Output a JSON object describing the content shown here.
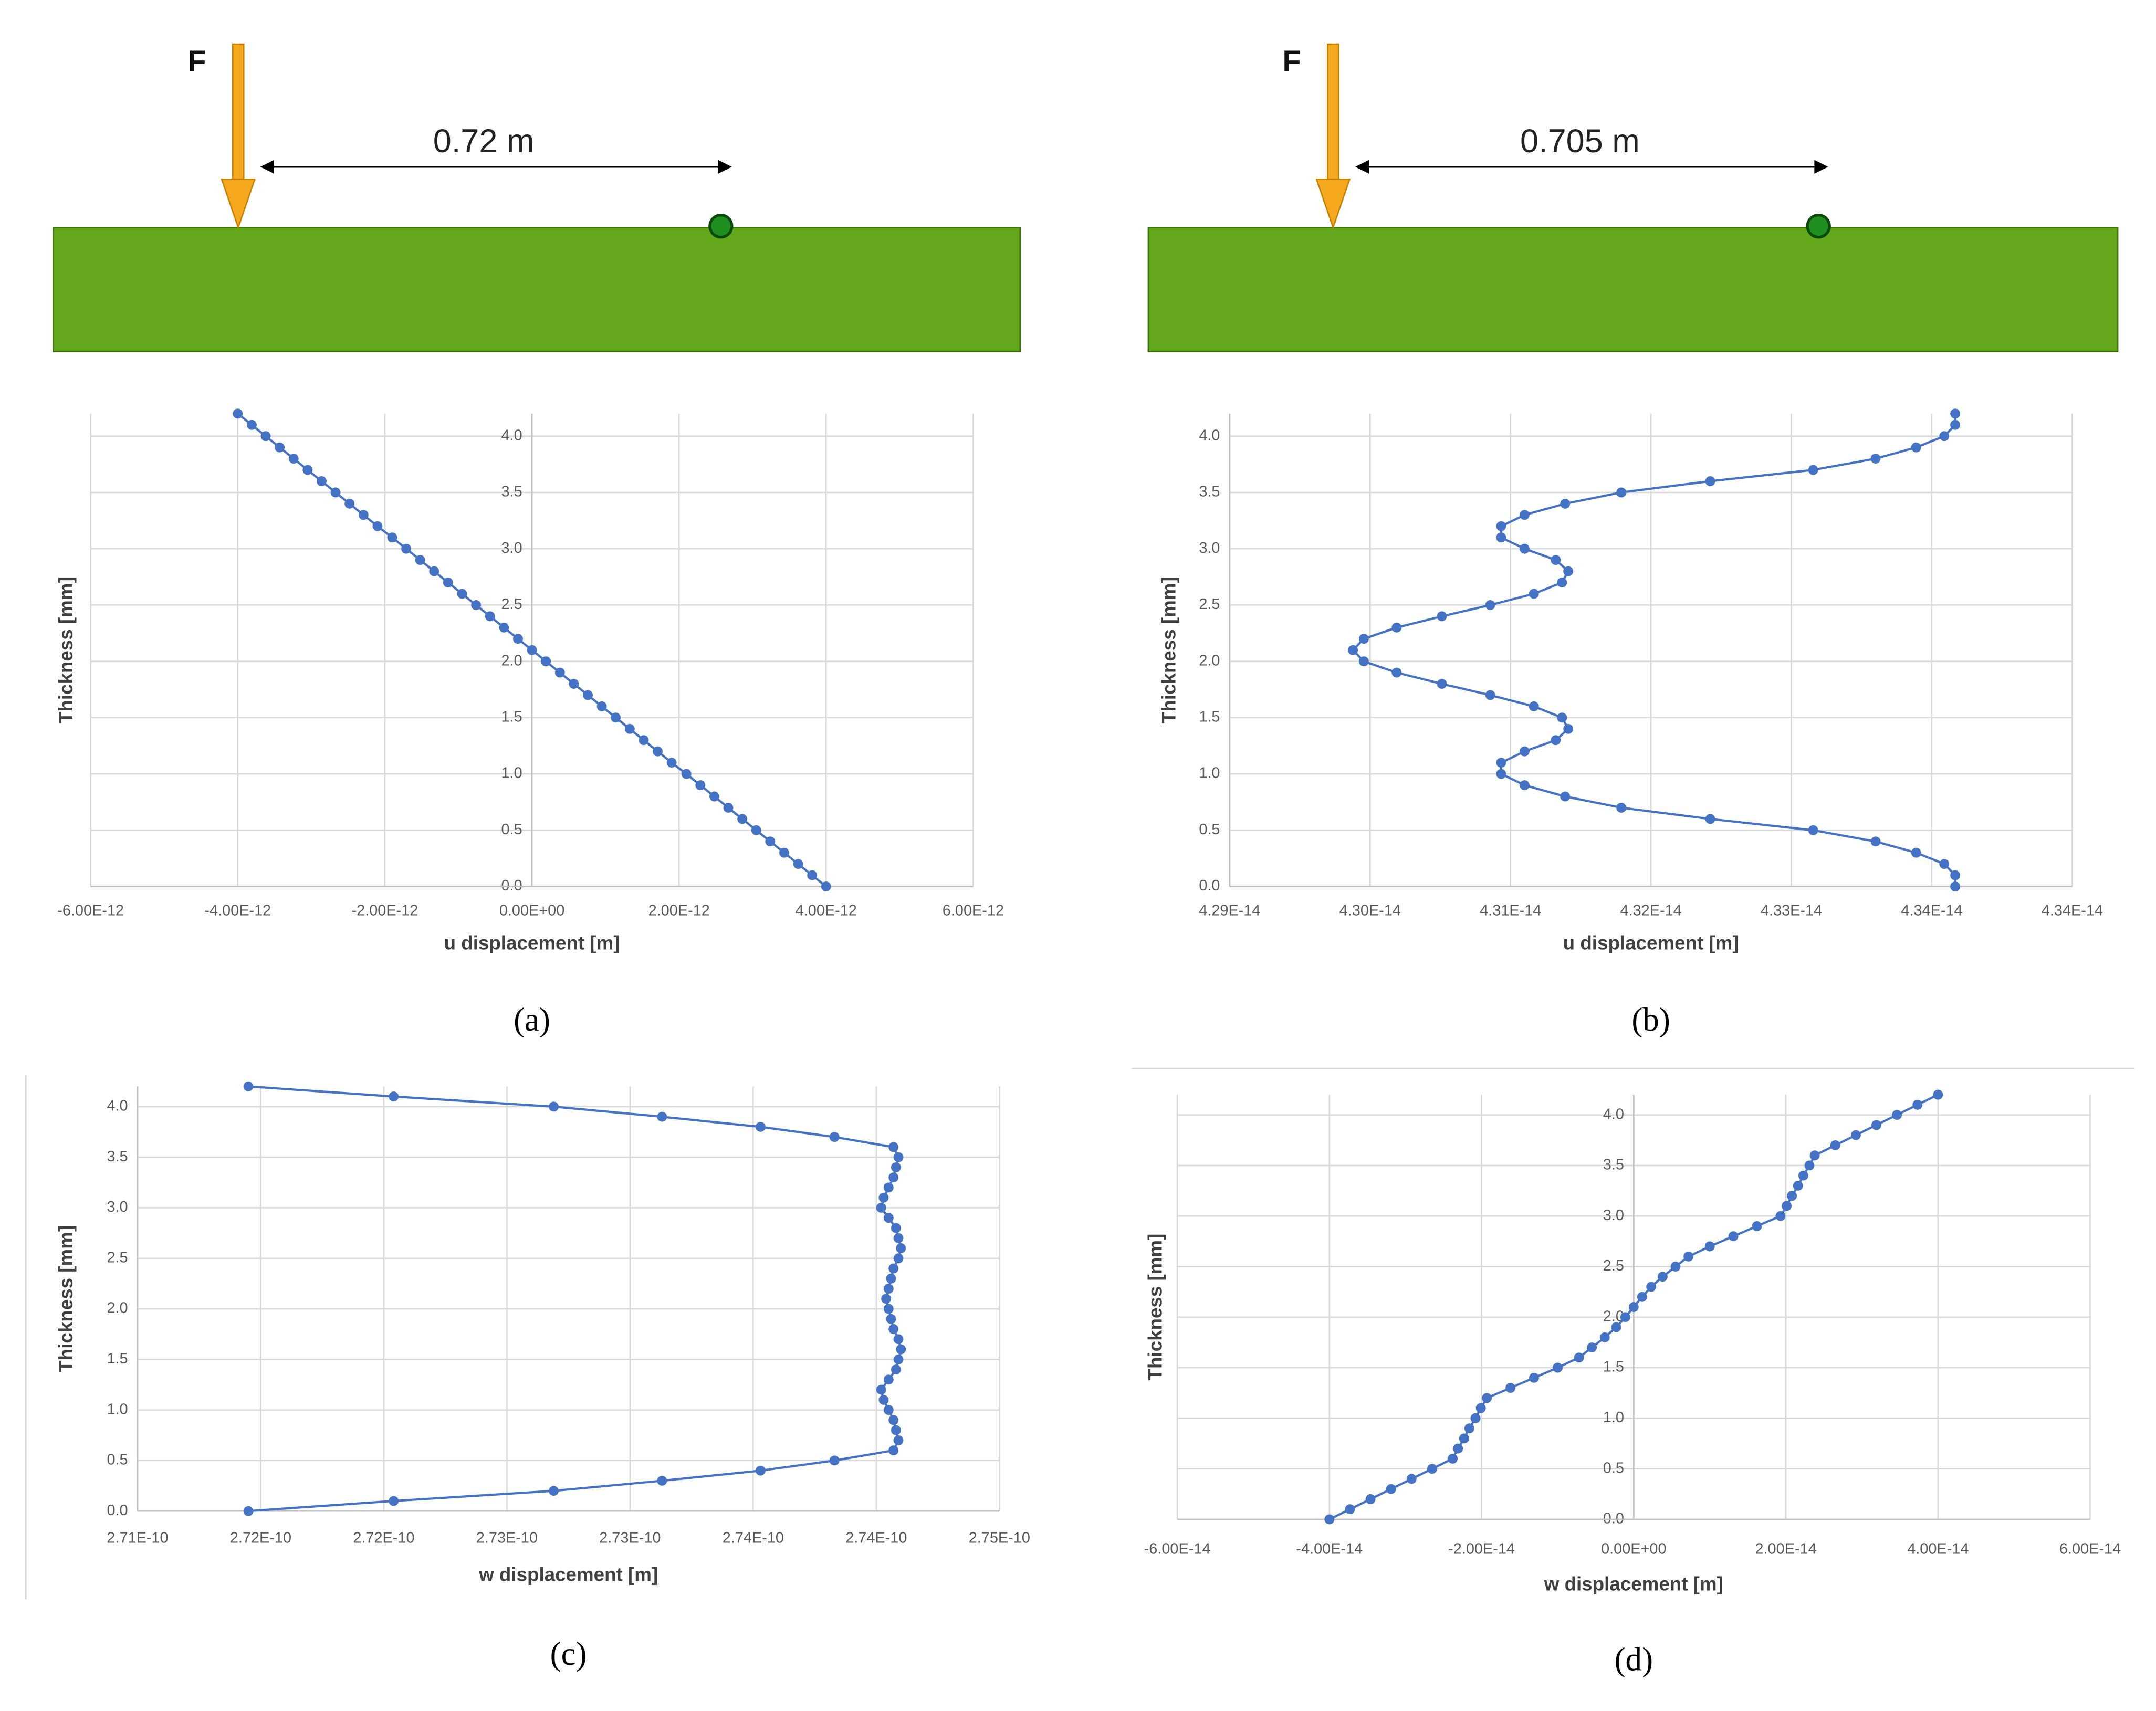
{
  "chart_data": [
    {
      "type": "line",
      "label": "(a)",
      "x_label": "u displacement [m]",
      "y_label": "Thickness [mm]",
      "grid": true,
      "xlim": [
        -6e-12,
        6e-12
      ],
      "xticks": [
        {
          "value": -6e-12,
          "label": "-6.00E-12"
        },
        {
          "value": -4e-12,
          "label": "-4.00E-12"
        },
        {
          "value": -2e-12,
          "label": "-2.00E-12"
        },
        {
          "value": 0,
          "label": "0.00E+00"
        },
        {
          "value": 2e-12,
          "label": "2.00E-12"
        },
        {
          "value": 4e-12,
          "label": "4.00E-12"
        },
        {
          "value": 6e-12,
          "label": "6.00E-12"
        }
      ],
      "ylim": [
        0,
        4.2
      ],
      "yticks": [
        {
          "value": 0,
          "label": "0.0"
        },
        {
          "value": 0.5,
          "label": "0.5"
        },
        {
          "value": 1,
          "label": "1.0"
        },
        {
          "value": 1.5,
          "label": "1.5"
        },
        {
          "value": 2,
          "label": "2.0"
        },
        {
          "value": 2.5,
          "label": "2.5"
        },
        {
          "value": 3,
          "label": "3.0"
        },
        {
          "value": 3.5,
          "label": "3.5"
        },
        {
          "value": 4,
          "label": "4.0"
        }
      ],
      "x": [
        -4e-12,
        -3.81e-12,
        -3.62e-12,
        -3.43e-12,
        -3.24e-12,
        -3.05e-12,
        -2.86e-12,
        -2.67e-12,
        -2.48e-12,
        -2.29e-12,
        -2.1e-12,
        -1.9e-12,
        -1.71e-12,
        -1.52e-12,
        -1.33e-12,
        -1.14e-12,
        -9.5e-13,
        -7.6e-13,
        -5.7e-13,
        -3.8e-13,
        -1.9e-13,
        0,
        1.9e-13,
        3.8e-13,
        5.7e-13,
        7.6e-13,
        9.5e-13,
        1.14e-12,
        1.33e-12,
        1.52e-12,
        1.71e-12,
        1.9e-12,
        2.1e-12,
        2.29e-12,
        2.48e-12,
        2.67e-12,
        2.86e-12,
        3.05e-12,
        3.24e-12,
        3.43e-12,
        3.62e-12,
        3.81e-12,
        4e-12
      ],
      "series": [
        {
          "color": "#4472c4",
          "values": [
            4.2,
            4.1,
            4.0,
            3.9,
            3.8,
            3.7,
            3.6,
            3.5,
            3.4,
            3.3,
            3.2,
            3.1,
            3.0,
            2.9,
            2.8,
            2.7,
            2.6,
            2.5,
            2.4,
            2.3,
            2.2,
            2.1,
            2.0,
            1.9,
            1.8,
            1.7,
            1.6,
            1.5,
            1.4,
            1.3,
            1.2,
            1.1,
            1.0,
            0.9,
            0.8,
            0.7,
            0.6,
            0.5,
            0.4,
            0.3,
            0.2,
            0.1,
            0
          ]
        }
      ]
    },
    {
      "type": "line",
      "label": "(b)",
      "x_label": "u displacement [m]",
      "y_label": "Thickness [mm]",
      "grid": true,
      "xlim": [
        4.2888e-14,
        4.3428e-14
      ],
      "xticks": [
        {
          "value": 4.2888e-14,
          "label": "4.29E-14"
        },
        {
          "value": 4.2978e-14,
          "label": "4.30E-14"
        },
        {
          "value": 4.3068e-14,
          "label": "4.31E-14"
        },
        {
          "value": 4.3158e-14,
          "label": "4.32E-14"
        },
        {
          "value": 4.3248e-14,
          "label": "4.33E-14"
        },
        {
          "value": 4.3338e-14,
          "label": "4.34E-14"
        },
        {
          "value": 4.3428e-14,
          "label": "4.34E-14"
        }
      ],
      "ylim": [
        0,
        4.2
      ],
      "yticks": [
        {
          "value": 0,
          "label": "0.0"
        },
        {
          "value": 0.5,
          "label": "0.5"
        },
        {
          "value": 1,
          "label": "1.0"
        },
        {
          "value": 1.5,
          "label": "1.5"
        },
        {
          "value": 2,
          "label": "2.0"
        },
        {
          "value": 2.5,
          "label": "2.5"
        },
        {
          "value": 3,
          "label": "3.0"
        },
        {
          "value": 3.5,
          "label": "3.5"
        },
        {
          "value": 4,
          "label": "4.0"
        }
      ],
      "x": [
        4.3353e-14,
        4.3353e-14,
        4.3346e-14,
        4.3328e-14,
        4.3302e-14,
        4.3262e-14,
        4.3196e-14,
        4.3139e-14,
        4.3103e-14,
        4.3077e-14,
        4.3062e-14,
        4.3062e-14,
        4.3077e-14,
        4.3097e-14,
        4.3105e-14,
        4.3101e-14,
        4.3083e-14,
        4.3055e-14,
        4.3024e-14,
        4.2995e-14,
        4.2974e-14,
        4.2967e-14,
        4.2974e-14,
        4.2995e-14,
        4.3024e-14,
        4.3055e-14,
        4.3083e-14,
        4.3101e-14,
        4.3105e-14,
        4.3097e-14,
        4.3077e-14,
        4.3062e-14,
        4.3062e-14,
        4.3077e-14,
        4.3103e-14,
        4.3139e-14,
        4.3196e-14,
        4.3262e-14,
        4.3302e-14,
        4.3328e-14,
        4.3346e-14,
        4.3353e-14,
        4.3353e-14
      ],
      "series": [
        {
          "color": "#4472c4",
          "values": [
            4.2,
            4.1,
            4.0,
            3.9,
            3.8,
            3.7,
            3.6,
            3.5,
            3.4,
            3.3,
            3.2,
            3.1,
            3.0,
            2.9,
            2.8,
            2.7,
            2.6,
            2.5,
            2.4,
            2.3,
            2.2,
            2.1,
            2.0,
            1.9,
            1.8,
            1.7,
            1.6,
            1.5,
            1.4,
            1.3,
            1.2,
            1.1,
            1.0,
            0.9,
            0.8,
            0.7,
            0.6,
            0.5,
            0.4,
            0.3,
            0.2,
            0.1,
            0
          ]
        }
      ]
    },
    {
      "type": "line",
      "label": "(c)",
      "x_label": "w displacement [m]",
      "y_label": "Thickness [mm]",
      "grid": true,
      "xlim": [
        2.71e-10,
        2.745e-10
      ],
      "xticks": [
        {
          "value": 2.71e-10,
          "label": "2.71E-10"
        },
        {
          "value": 2.715e-10,
          "label": "2.72E-10"
        },
        {
          "value": 2.72e-10,
          "label": "2.72E-10"
        },
        {
          "value": 2.725e-10,
          "label": "2.73E-10"
        },
        {
          "value": 2.73e-10,
          "label": "2.73E-10"
        },
        {
          "value": 2.735e-10,
          "label": "2.74E-10"
        },
        {
          "value": 2.74e-10,
          "label": "2.74E-10"
        },
        {
          "value": 2.745e-10,
          "label": "2.75E-10"
        }
      ],
      "ylim": [
        0,
        4.2
      ],
      "yticks": [
        {
          "value": 0,
          "label": "0.0"
        },
        {
          "value": 0.5,
          "label": "0.5"
        },
        {
          "value": 1,
          "label": "1.0"
        },
        {
          "value": 1.5,
          "label": "1.5"
        },
        {
          "value": 2,
          "label": "2.0"
        },
        {
          "value": 2.5,
          "label": "2.5"
        },
        {
          "value": 3,
          "label": "3.0"
        },
        {
          "value": 3.5,
          "label": "3.5"
        },
        {
          "value": 4,
          "label": "4.0"
        }
      ],
      "x": [
        2.7145e-10,
        2.7204e-10,
        2.7269e-10,
        2.7313e-10,
        2.7353e-10,
        2.7383e-10,
        2.7407e-10,
        2.7409e-10,
        2.7408e-10,
        2.7407e-10,
        2.7405e-10,
        2.7403e-10,
        2.7402e-10,
        2.7405e-10,
        2.7408e-10,
        2.7409e-10,
        2.741e-10,
        2.7409e-10,
        2.7407e-10,
        2.7406e-10,
        2.7405e-10,
        2.7404e-10,
        2.7405e-10,
        2.7406e-10,
        2.7407e-10,
        2.7409e-10,
        2.741e-10,
        2.7409e-10,
        2.7408e-10,
        2.7405e-10,
        2.7402e-10,
        2.7403e-10,
        2.7405e-10,
        2.7407e-10,
        2.7408e-10,
        2.7409e-10,
        2.7407e-10,
        2.7383e-10,
        2.7353e-10,
        2.7313e-10,
        2.7269e-10,
        2.7204e-10,
        2.7145e-10
      ],
      "series": [
        {
          "color": "#4472c4",
          "values": [
            4.2,
            4.1,
            4.0,
            3.9,
            3.8,
            3.7,
            3.6,
            3.5,
            3.4,
            3.3,
            3.2,
            3.1,
            3.0,
            2.9,
            2.8,
            2.7,
            2.6,
            2.5,
            2.4,
            2.3,
            2.2,
            2.1,
            2.0,
            1.9,
            1.8,
            1.7,
            1.6,
            1.5,
            1.4,
            1.3,
            1.2,
            1.1,
            1.0,
            0.9,
            0.8,
            0.7,
            0.6,
            0.5,
            0.4,
            0.3,
            0.2,
            0.1,
            0
          ]
        }
      ]
    },
    {
      "type": "line",
      "label": "(d)",
      "x_label": "w displacement [m]",
      "y_label": "Thickness [mm]",
      "grid": true,
      "xlim": [
        -6e-14,
        6e-14
      ],
      "xticks": [
        {
          "value": -6e-14,
          "label": "-6.00E-14"
        },
        {
          "value": -4e-14,
          "label": "-4.00E-14"
        },
        {
          "value": -2e-14,
          "label": "-2.00E-14"
        },
        {
          "value": 0,
          "label": "0.00E+00"
        },
        {
          "value": 2e-14,
          "label": "2.00E-14"
        },
        {
          "value": 4e-14,
          "label": "4.00E-14"
        },
        {
          "value": 6e-14,
          "label": "6.00E-14"
        }
      ],
      "ylim": [
        0,
        4.2
      ],
      "yticks": [
        {
          "value": 0,
          "label": "0.0"
        },
        {
          "value": 0.5,
          "label": "0.5"
        },
        {
          "value": 1,
          "label": "1.0"
        },
        {
          "value": 1.5,
          "label": "1.5"
        },
        {
          "value": 2,
          "label": "2.0"
        },
        {
          "value": 2.5,
          "label": "2.5"
        },
        {
          "value": 3,
          "label": "3.0"
        },
        {
          "value": 3.5,
          "label": "3.5"
        },
        {
          "value": 4,
          "label": "4.0"
        }
      ],
      "x": [
        -4e-14,
        -3.73e-14,
        -3.46e-14,
        -3.19e-14,
        -2.92e-14,
        -2.65e-14,
        -2.38e-14,
        -2.31e-14,
        -2.23e-14,
        -2.16e-14,
        -2.08e-14,
        -2.01e-14,
        -1.93e-14,
        -1.62e-14,
        -1.31e-14,
        -1e-14,
        -7.2e-15,
        -5.5e-15,
        -3.8e-15,
        -2.3e-15,
        -1.1e-15,
        0,
        1.1e-15,
        2.3e-15,
        3.8e-15,
        5.5e-15,
        7.2e-15,
        1e-14,
        1.31e-14,
        1.62e-14,
        1.93e-14,
        2.01e-14,
        2.08e-14,
        2.16e-14,
        2.23e-14,
        2.31e-14,
        2.38e-14,
        2.65e-14,
        2.92e-14,
        3.19e-14,
        3.46e-14,
        3.73e-14,
        4e-14
      ],
      "series": [
        {
          "color": "#4472c4",
          "values": [
            0,
            0.1,
            0.2,
            0.3,
            0.4,
            0.5,
            0.6,
            0.7,
            0.8,
            0.9,
            1.0,
            1.1,
            1.2,
            1.3,
            1.4,
            1.5,
            1.6,
            1.7,
            1.8,
            1.9,
            2.0,
            2.1,
            2.2,
            2.3,
            2.4,
            2.5,
            2.6,
            2.7,
            2.8,
            2.9,
            3.0,
            3.1,
            3.2,
            3.3,
            3.4,
            3.5,
            3.6,
            3.7,
            3.8,
            3.9,
            4.0,
            4.1,
            4.2
          ]
        }
      ]
    }
  ],
  "diagrams": [
    {
      "force_label": "F",
      "distance_label": "0.72 m"
    },
    {
      "force_label": "F",
      "distance_label": "0.705 m"
    }
  ]
}
